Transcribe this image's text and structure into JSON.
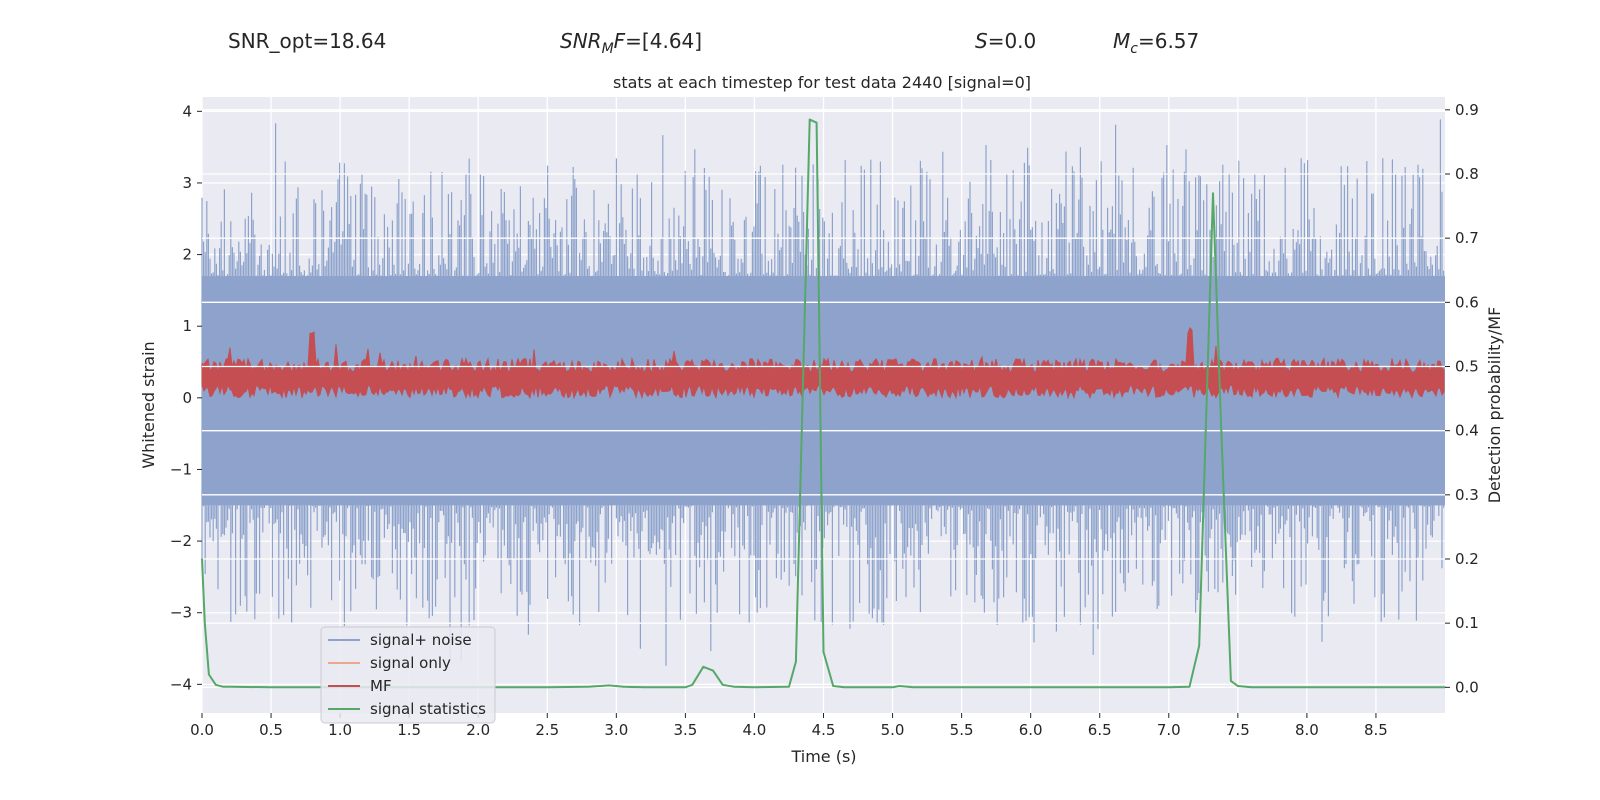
{
  "header": {
    "snr_opt": "SNR_opt=18.64",
    "snr_mf_main": "SNR",
    "snr_mf_sub": "M",
    "snr_mf_tail": "F",
    "snr_mf_value": "=[4.64]",
    "s_main": "S",
    "s_value": "=0.0",
    "mc_main": "M",
    "mc_sub": "c",
    "mc_value": "=6.57"
  },
  "chart_data": {
    "type": "line",
    "title": "stats at each timestep for test data 2440 [signal=0]",
    "xlabel": "Time (s)",
    "ylabel": "Whitened strain",
    "y2label": "Detection probability/MF",
    "xlim": [
      0.0,
      9.0
    ],
    "ylim": [
      -4.4,
      4.2
    ],
    "y2lim": [
      -0.04,
      0.92
    ],
    "x_ticks": [
      0.0,
      0.5,
      1.0,
      1.5,
      2.0,
      2.5,
      3.0,
      3.5,
      4.0,
      4.5,
      5.0,
      5.5,
      6.0,
      6.5,
      7.0,
      7.5,
      8.0,
      8.5
    ],
    "x_tick_labels": [
      "0.0",
      "0.5",
      "1.0",
      "1.5",
      "2.0",
      "2.5",
      "3.0",
      "3.5",
      "4.0",
      "4.5",
      "5.0",
      "5.5",
      "6.0",
      "6.5",
      "7.0",
      "7.5",
      "8.0",
      "8.5"
    ],
    "y_ticks": [
      4,
      3,
      2,
      1,
      0,
      -1,
      -2,
      -3,
      -4
    ],
    "y_tick_labels": [
      "4",
      "3",
      "2",
      "1",
      "0",
      "−1",
      "−2",
      "−3",
      "−4"
    ],
    "y2_ticks": [
      0.9,
      0.8,
      0.7,
      0.6,
      0.5,
      0.4,
      0.3,
      0.2,
      0.1,
      0.0
    ],
    "y2_tick_labels": [
      "0.9",
      "0.8",
      "0.7",
      "0.6",
      "0.5",
      "0.4",
      "0.3",
      "0.2",
      "0.1",
      "0.0"
    ],
    "legend": [
      {
        "label": "signal+ noise",
        "color": "#8ea3cc"
      },
      {
        "label": "signal only",
        "color": "#eaa98b"
      },
      {
        "label": "MF",
        "color": "#c44e52"
      },
      {
        "label": "signal statistics",
        "color": "#55a868"
      }
    ],
    "series": [
      {
        "name": "signal statistics",
        "axis": "right",
        "color": "#55a868",
        "x": [
          0.0,
          0.02,
          0.05,
          0.1,
          0.15,
          0.2,
          0.5,
          1.0,
          1.5,
          2.0,
          2.5,
          2.8,
          2.95,
          3.05,
          3.2,
          3.5,
          3.55,
          3.63,
          3.7,
          3.77,
          3.85,
          4.0,
          4.25,
          4.3,
          4.4,
          4.45,
          4.5,
          4.57,
          4.65,
          5.0,
          5.05,
          5.15,
          5.5,
          6.0,
          6.5,
          7.0,
          7.15,
          7.22,
          7.32,
          7.38,
          7.45,
          7.5,
          7.6,
          8.0,
          8.5,
          9.0
        ],
        "y": [
          0.2,
          0.1,
          0.02,
          0.004,
          0.001,
          0.001,
          0.0,
          0.0,
          0.0,
          0.0,
          0.0,
          0.001,
          0.003,
          0.001,
          0.0,
          0.0,
          0.004,
          0.032,
          0.026,
          0.004,
          0.001,
          0.0,
          0.001,
          0.04,
          0.885,
          0.88,
          0.055,
          0.002,
          0.0,
          0.0,
          0.002,
          0.0,
          0.0,
          0.0,
          0.0,
          0.0,
          0.001,
          0.065,
          0.77,
          0.4,
          0.01,
          0.002,
          0.0,
          0.0,
          0.0,
          0.0
        ]
      }
    ],
    "noise_envelope": {
      "name": "signal+ noise",
      "color": "#8ea3cc",
      "dense_band": [
        -1.5,
        1.7
      ],
      "spike_range": [
        -3.9,
        3.9
      ]
    },
    "mf_band": {
      "name": "MF",
      "color": "#c44e52",
      "band": [
        0.0,
        0.55
      ],
      "peak_times": [
        0.8,
        7.15
      ],
      "peak_value": 1.0
    }
  }
}
